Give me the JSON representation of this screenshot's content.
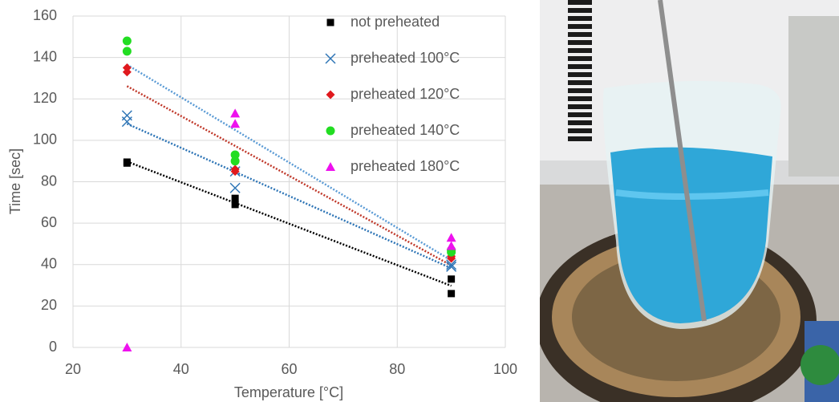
{
  "chart_data": {
    "type": "scatter",
    "x_label": "Temperature [°C]",
    "y_label": "Time [sec]",
    "xlim": [
      20,
      100
    ],
    "xticks": [
      20,
      40,
      60,
      80,
      100
    ],
    "ylim": [
      0,
      160
    ],
    "yticks": [
      0,
      20,
      40,
      60,
      80,
      100,
      120,
      140,
      160
    ],
    "grid": true,
    "legend": "top-right",
    "series": [
      {
        "name": "not preheated",
        "color": "#000000",
        "marker": "square",
        "trendline_color": "#000000",
        "x": [
          30,
          30,
          50,
          50,
          90,
          90
        ],
        "values": [
          89.5,
          89,
          72,
          69,
          33,
          26
        ]
      },
      {
        "name": "preheated 100°C",
        "color": "#2e75b6",
        "marker": "x",
        "trendline_color": "#2e75b6",
        "x": [
          30,
          30,
          50,
          50,
          90,
          90
        ],
        "values": [
          112,
          109,
          85,
          77,
          40,
          39
        ]
      },
      {
        "name": "preheated 120°C",
        "color": "#e0191e",
        "marker": "diamond",
        "trendline_color": "#c0392b",
        "x": [
          30,
          30,
          50,
          50,
          90,
          90
        ],
        "values": [
          135,
          133,
          86,
          85,
          44,
          43
        ]
      },
      {
        "name": "preheated 140°C",
        "color": "#22dd22",
        "marker": "circle",
        "trendline_color": "#5b9bd5",
        "x": [
          30,
          30,
          50,
          50,
          90,
          90
        ],
        "values": [
          148,
          143,
          93,
          90,
          47,
          46
        ]
      },
      {
        "name": "preheated 180°C",
        "color": "#ee11ee",
        "marker": "triangle",
        "x": [
          30,
          50,
          50,
          90,
          90
        ],
        "values": [
          0,
          113,
          108,
          53,
          49
        ]
      }
    ]
  }
}
